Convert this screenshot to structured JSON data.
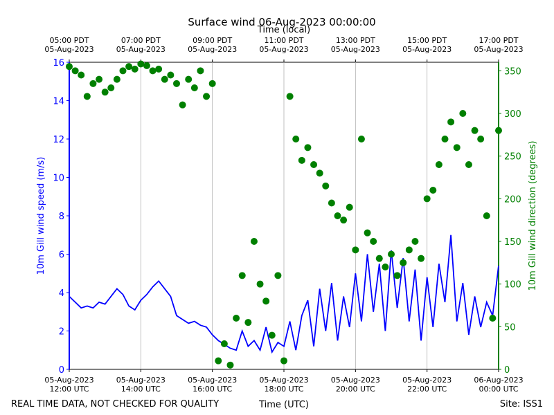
{
  "chart_data": {
    "type": "line",
    "title": "Surface wind 06-Aug-2023 00:00:00",
    "top_xlabel": "Time (local)",
    "xlabel": "Time (UTC)",
    "ylabel": "10m Gill wind speed (m/s)",
    "y2label": "10m Gill wind direction (degrees)",
    "footer_left": "REAL TIME DATA, NOT CHECKED FOR QUALITY",
    "footer_right": "Site: ISS1",
    "grid": true,
    "xlim": [
      "2023-08-05T12:00",
      "2023-08-06T00:00"
    ],
    "xticks": [
      {
        "value": "2023-08-05T12:00",
        "label": "05-Aug-2023\n12:00 UTC"
      },
      {
        "value": "2023-08-05T14:00",
        "label": "05-Aug-2023\n14:00 UTC"
      },
      {
        "value": "2023-08-05T16:00",
        "label": "05-Aug-2023\n16:00 UTC"
      },
      {
        "value": "2023-08-05T18:00",
        "label": "05-Aug-2023\n18:00 UTC"
      },
      {
        "value": "2023-08-05T20:00",
        "label": "05-Aug-2023\n20:00 UTC"
      },
      {
        "value": "2023-08-05T22:00",
        "label": "05-Aug-2023\n22:00 UTC"
      },
      {
        "value": "2023-08-06T00:00",
        "label": "06-Aug-2023\n00:00 UTC"
      }
    ],
    "top_xticks": [
      {
        "value": "2023-08-05T12:00",
        "label": "05:00 PDT\n05-Aug-2023"
      },
      {
        "value": "2023-08-05T14:00",
        "label": "07:00 PDT\n05-Aug-2023"
      },
      {
        "value": "2023-08-05T16:00",
        "label": "09:00 PDT\n05-Aug-2023"
      },
      {
        "value": "2023-08-05T18:00",
        "label": "11:00 PDT\n05-Aug-2023"
      },
      {
        "value": "2023-08-05T20:00",
        "label": "13:00 PDT\n05-Aug-2023"
      },
      {
        "value": "2023-08-05T22:00",
        "label": "15:00 PDT\n05-Aug-2023"
      },
      {
        "value": "2023-08-06T00:00",
        "label": "17:00 PDT\n05-Aug-2023"
      }
    ],
    "ylim": [
      0,
      16
    ],
    "yticks": [
      0,
      2,
      4,
      6,
      8,
      10,
      12,
      14,
      16
    ],
    "y2lim": [
      0,
      360
    ],
    "y2ticks": [
      0,
      50,
      100,
      150,
      200,
      250,
      300,
      350
    ],
    "x": [
      "2023-08-05T12:00",
      "2023-08-05T12:10",
      "2023-08-05T12:20",
      "2023-08-05T12:30",
      "2023-08-05T12:40",
      "2023-08-05T12:50",
      "2023-08-05T13:00",
      "2023-08-05T13:10",
      "2023-08-05T13:20",
      "2023-08-05T13:30",
      "2023-08-05T13:40",
      "2023-08-05T13:50",
      "2023-08-05T14:00",
      "2023-08-05T14:10",
      "2023-08-05T14:20",
      "2023-08-05T14:30",
      "2023-08-05T14:40",
      "2023-08-05T14:50",
      "2023-08-05T15:00",
      "2023-08-05T15:10",
      "2023-08-05T15:20",
      "2023-08-05T15:30",
      "2023-08-05T15:40",
      "2023-08-05T15:50",
      "2023-08-05T16:00",
      "2023-08-05T16:10",
      "2023-08-05T16:20",
      "2023-08-05T16:30",
      "2023-08-05T16:40",
      "2023-08-05T16:50",
      "2023-08-05T17:00",
      "2023-08-05T17:10",
      "2023-08-05T17:20",
      "2023-08-05T17:30",
      "2023-08-05T17:40",
      "2023-08-05T17:50",
      "2023-08-05T18:00",
      "2023-08-05T18:10",
      "2023-08-05T18:20",
      "2023-08-05T18:30",
      "2023-08-05T18:40",
      "2023-08-05T18:50",
      "2023-08-05T19:00",
      "2023-08-05T19:10",
      "2023-08-05T19:20",
      "2023-08-05T19:30",
      "2023-08-05T19:40",
      "2023-08-05T19:50",
      "2023-08-05T20:00",
      "2023-08-05T20:10",
      "2023-08-05T20:20",
      "2023-08-05T20:30",
      "2023-08-05T20:40",
      "2023-08-05T20:50",
      "2023-08-05T21:00",
      "2023-08-05T21:10",
      "2023-08-05T21:20",
      "2023-08-05T21:30",
      "2023-08-05T21:40",
      "2023-08-05T21:50",
      "2023-08-05T22:00",
      "2023-08-05T22:10",
      "2023-08-05T22:20",
      "2023-08-05T22:30",
      "2023-08-05T22:40",
      "2023-08-05T22:50",
      "2023-08-05T23:00",
      "2023-08-05T23:10",
      "2023-08-05T23:20",
      "2023-08-05T23:30",
      "2023-08-05T23:40",
      "2023-08-05T23:50",
      "2023-08-06T00:00"
    ],
    "series": [
      {
        "type": "line",
        "color": "#0000ff",
        "values": [
          3.8,
          3.5,
          3.2,
          3.3,
          3.2,
          3.5,
          3.4,
          3.8,
          4.2,
          3.9,
          3.3,
          3.1,
          3.6,
          3.9,
          4.3,
          4.6,
          4.2,
          3.8,
          2.8,
          2.6,
          2.4,
          2.5,
          2.3,
          2.2,
          1.8,
          1.5,
          1.3,
          1.1,
          1.0,
          2.0,
          1.2,
          1.5,
          1.0,
          2.2,
          0.9,
          1.4,
          1.2,
          2.5,
          1.0,
          2.8,
          3.6,
          1.2,
          4.2,
          2.0,
          4.5,
          1.5,
          3.8,
          2.2,
          5.0,
          2.5,
          6.0,
          3.0,
          5.5,
          2.0,
          6.2,
          3.2,
          5.8,
          2.5,
          5.2,
          1.5,
          4.8,
          2.2,
          5.5,
          3.5,
          7.0,
          2.5,
          4.5,
          1.8,
          3.8,
          2.2,
          3.5,
          2.8,
          5.4
        ]
      },
      {
        "type": "scatter",
        "color": "#008000",
        "axis": "y2",
        "values": [
          355,
          350,
          345,
          320,
          335,
          340,
          325,
          330,
          340,
          350,
          355,
          352,
          358,
          356,
          350,
          352,
          340,
          345,
          335,
          310,
          340,
          330,
          350,
          320,
          335,
          10,
          30,
          5,
          60,
          110,
          55,
          150,
          100,
          80,
          40,
          110,
          10,
          320,
          270,
          245,
          260,
          240,
          230,
          215,
          195,
          180,
          175,
          190,
          140,
          270,
          160,
          150,
          130,
          120,
          135,
          110,
          125,
          140,
          150,
          130,
          200,
          210,
          240,
          270,
          290,
          260,
          300,
          240,
          280,
          270,
          180,
          60,
          280
        ]
      }
    ]
  }
}
